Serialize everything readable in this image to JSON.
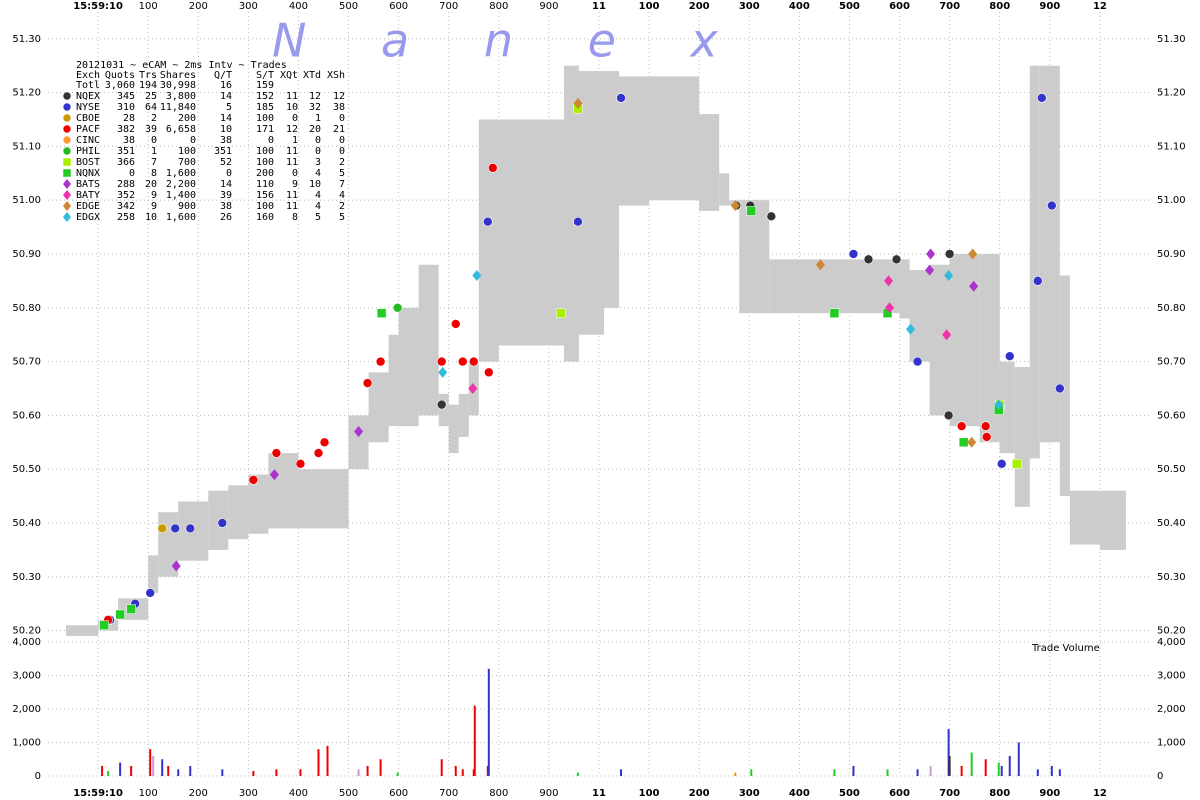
{
  "chart_data": {
    "type": "scatter",
    "watermark": "N a n e x",
    "volume_label": "Trade Volume",
    "grid": true,
    "xlim": [
      -100,
      2100
    ],
    "xticks": [
      {
        "value": 0,
        "label": "15:59:10"
      },
      100,
      200,
      300,
      400,
      500,
      600,
      700,
      800,
      900,
      {
        "value": 1000,
        "label": "11"
      },
      {
        "value": 1100,
        "label": "100"
      },
      {
        "value": 1200,
        "label": "200"
      },
      {
        "value": 1300,
        "label": "300"
      },
      {
        "value": 1400,
        "label": "400"
      },
      {
        "value": 1500,
        "label": "500"
      },
      {
        "value": 1600,
        "label": "600"
      },
      {
        "value": 1700,
        "label": "700"
      },
      {
        "value": 1800,
        "label": "800"
      },
      {
        "value": 1900,
        "label": "900"
      },
      {
        "value": 2000,
        "label": "12"
      }
    ],
    "ylim": [
      50.19,
      51.32
    ],
    "yticks": [
      {
        "value": 50.2,
        "label": "50.20"
      },
      {
        "value": 50.3,
        "label": "50.30"
      },
      {
        "value": 50.4,
        "label": "50.40"
      },
      {
        "value": 50.5,
        "label": "50.50"
      },
      {
        "value": 50.6,
        "label": "50.60"
      },
      {
        "value": 50.7,
        "label": "50.70"
      },
      {
        "value": 50.8,
        "label": "50.80"
      },
      {
        "value": 50.9,
        "label": "50.90"
      },
      {
        "value": 51.0,
        "label": "51.00"
      },
      {
        "value": 51.1,
        "label": "51.10"
      },
      {
        "value": 51.2,
        "label": "51.20"
      },
      {
        "value": 51.3,
        "label": "51.30"
      }
    ],
    "vol_ylim": [
      0,
      4000
    ],
    "vol_yticks": [
      0,
      {
        "value": 1000,
        "label": "1,000"
      },
      {
        "value": 2000,
        "label": "2,000"
      },
      {
        "value": 3000,
        "label": "3,000"
      },
      {
        "value": 4000,
        "label": "4,000"
      }
    ],
    "band": {
      "color": "#cccccc",
      "x": [
        -64,
        0,
        40,
        100,
        120,
        160,
        220,
        260,
        300,
        340,
        400,
        500,
        540,
        580,
        600,
        640,
        680,
        700,
        720,
        740,
        760,
        800,
        900,
        930,
        960,
        1010,
        1040,
        1100,
        1200,
        1240,
        1260,
        1280,
        1340,
        1600,
        1620,
        1660,
        1700,
        1760,
        1800,
        1830,
        1860,
        1880,
        1920,
        1940,
        2000,
        2050
      ],
      "low": [
        50.19,
        50.2,
        50.22,
        50.27,
        50.3,
        50.33,
        50.35,
        50.37,
        50.38,
        50.39,
        50.39,
        50.5,
        50.55,
        50.58,
        50.58,
        50.6,
        50.58,
        50.53,
        50.56,
        50.6,
        50.7,
        50.73,
        50.73,
        50.7,
        50.75,
        50.8,
        50.99,
        51.0,
        50.98,
        50.99,
        50.99,
        50.79,
        50.79,
        50.78,
        50.7,
        50.6,
        50.58,
        50.55,
        50.53,
        50.43,
        50.52,
        50.55,
        50.45,
        50.36,
        50.35,
        50.35
      ],
      "high": [
        50.21,
        50.22,
        50.26,
        50.34,
        50.42,
        50.44,
        50.46,
        50.47,
        50.49,
        50.53,
        50.5,
        50.6,
        50.68,
        50.75,
        50.8,
        50.88,
        50.64,
        50.62,
        50.64,
        50.7,
        51.15,
        51.15,
        51.15,
        51.25,
        51.24,
        51.24,
        51.23,
        51.23,
        51.16,
        51.05,
        51.0,
        51.0,
        50.89,
        50.89,
        50.87,
        50.88,
        50.9,
        50.9,
        50.7,
        50.69,
        51.25,
        51.25,
        50.86,
        50.46,
        50.46,
        50.46
      ]
    },
    "series": [
      {
        "name": "NQEX",
        "color": "#333333",
        "marker": "circle",
        "x": [
          686,
          1274,
          1302,
          1344,
          1538,
          1594,
          1698,
          1700
        ],
        "values": [
          50.62,
          50.99,
          50.99,
          50.97,
          50.89,
          50.89,
          50.6,
          50.9
        ]
      },
      {
        "name": "NYSE",
        "color": "#3333cc",
        "marker": "circle",
        "x": [
          24,
          44,
          74,
          104,
          154,
          184,
          248,
          564,
          778,
          958,
          1044,
          1508,
          1636,
          1804,
          1820,
          1876,
          1884,
          1904,
          1920
        ],
        "values": [
          50.22,
          50.23,
          50.25,
          50.27,
          50.39,
          50.39,
          50.4,
          50.7,
          50.96,
          50.96,
          51.19,
          50.9,
          50.7,
          50.51,
          50.71,
          50.85,
          51.19,
          50.99,
          50.65
        ]
      },
      {
        "name": "CBOE",
        "color": "#cc9900",
        "marker": "circle",
        "x": [
          128
        ],
        "values": [
          50.39
        ]
      },
      {
        "name": "PACF",
        "color": "#ee0000",
        "marker": "circle",
        "x": [
          20,
          310,
          356,
          404,
          440,
          452,
          538,
          564,
          686,
          714,
          728,
          750,
          780,
          788,
          1724,
          1772,
          1774
        ],
        "values": [
          50.22,
          50.48,
          50.53,
          50.51,
          50.53,
          50.55,
          50.66,
          50.7,
          50.7,
          50.77,
          50.7,
          50.7,
          50.68,
          51.06,
          50.58,
          50.58,
          50.56
        ]
      },
      {
        "name": "CINC",
        "color": "#ff9933",
        "marker": "circle",
        "x": [],
        "values": []
      },
      {
        "name": "PHIL",
        "color": "#22bb22",
        "marker": "circle",
        "x": [
          598
        ],
        "values": [
          50.8
        ]
      },
      {
        "name": "BOST",
        "color": "#aaee00",
        "marker": "square",
        "x": [
          924,
          958,
          1800,
          1834
        ],
        "values": [
          50.79,
          51.17,
          50.62,
          50.51
        ]
      },
      {
        "name": "NQNX",
        "color": "#22cc22",
        "marker": "square",
        "x": [
          12,
          44,
          66,
          566,
          1304,
          1470,
          1576,
          1728,
          1798
        ],
        "values": [
          50.21,
          50.23,
          50.24,
          50.79,
          50.98,
          50.79,
          50.79,
          50.55,
          50.61
        ]
      },
      {
        "name": "BATS",
        "color": "#aa33cc",
        "marker": "diamond",
        "x": [
          156,
          352,
          520,
          1660,
          1662,
          1748
        ],
        "values": [
          50.32,
          50.49,
          50.57,
          50.87,
          50.9,
          50.84
        ]
      },
      {
        "name": "BATY",
        "color": "#ee33aa",
        "marker": "diamond",
        "x": [
          748,
          1578,
          1580,
          1694
        ],
        "values": [
          50.65,
          50.85,
          50.8,
          50.75
        ]
      },
      {
        "name": "EDGE",
        "color": "#cc8833",
        "marker": "diamond",
        "x": [
          958,
          1272,
          1442,
          1744,
          1746
        ],
        "values": [
          51.18,
          50.99,
          50.88,
          50.55,
          50.9
        ]
      },
      {
        "name": "EDGX",
        "color": "#33bbdd",
        "marker": "diamond",
        "x": [
          688,
          756,
          1622,
          1698,
          1798
        ],
        "values": [
          50.68,
          50.86,
          50.76,
          50.86,
          50.62
        ]
      }
    ],
    "volume": {
      "x": [
        8,
        20,
        44,
        66,
        104,
        110,
        128,
        140,
        160,
        184,
        248,
        310,
        356,
        404,
        440,
        458,
        520,
        538,
        564,
        598,
        686,
        714,
        728,
        750,
        752,
        778,
        780,
        958,
        1044,
        1272,
        1304,
        1470,
        1508,
        1576,
        1636,
        1662,
        1698,
        1700,
        1724,
        1744,
        1772,
        1798,
        1804,
        1820,
        1838,
        1876,
        1904,
        1920
      ],
      "values": [
        300,
        150,
        400,
        300,
        800,
        600,
        500,
        300,
        200,
        300,
        200,
        150,
        200,
        200,
        800,
        900,
        200,
        300,
        500,
        100,
        500,
        300,
        200,
        200,
        2100,
        300,
        3200,
        100,
        200,
        100,
        200,
        200,
        300,
        200,
        200,
        300,
        1400,
        600,
        300,
        700,
        500,
        400,
        300,
        600,
        1000,
        200,
        300,
        200
      ],
      "colors": [
        "#ee0000",
        "#22cc22",
        "#3333cc",
        "#ee0000",
        "#ee0000",
        "#cc99cc",
        "#3333cc",
        "#ee0000",
        "#3333cc",
        "#3333cc",
        "#3333cc",
        "#ee0000",
        "#ee0000",
        "#ee0000",
        "#ee0000",
        "#ee0000",
        "#cc99cc",
        "#ee0000",
        "#ee0000",
        "#22cc22",
        "#ee0000",
        "#ee0000",
        "#ee0000",
        "#ee0000",
        "#ee0000",
        "#ee0000",
        "#3333cc",
        "#22cc22",
        "#3333cc",
        "#ee9900",
        "#22cc22",
        "#22cc22",
        "#3333cc",
        "#22cc22",
        "#3333cc",
        "#cc99cc",
        "#3333cc",
        "#333333",
        "#ee0000",
        "#22cc22",
        "#ee0000",
        "#22cc22",
        "#3333cc",
        "#3333cc",
        "#3333cc",
        "#3333cc",
        "#3333cc",
        "#3333cc"
      ]
    },
    "stats": {
      "title": "20121031 ~ eCAM ~ 2ms Intv ~ Trades",
      "columns": [
        "Exch",
        "Quots",
        "Trs",
        "Shares",
        "Q/T",
        "S/T",
        "XQt",
        "XTd",
        "XSh"
      ],
      "total": {
        "label": "Totl",
        "cells": [
          "3,060",
          "194",
          "30,998",
          "16",
          "159"
        ]
      },
      "rows": [
        [
          "345",
          "25",
          "3,800",
          "14",
          "152",
          "11",
          "12",
          "12"
        ],
        [
          "310",
          "64",
          "11,840",
          "5",
          "185",
          "10",
          "32",
          "38"
        ],
        [
          "28",
          "2",
          "200",
          "14",
          "100",
          "0",
          "1",
          "0"
        ],
        [
          "382",
          "39",
          "6,658",
          "10",
          "171",
          "12",
          "20",
          "21"
        ],
        [
          "38",
          "0",
          "0",
          "38",
          "0",
          "1",
          "0",
          "0"
        ],
        [
          "351",
          "1",
          "100",
          "351",
          "100",
          "11",
          "0",
          "0"
        ],
        [
          "366",
          "7",
          "700",
          "52",
          "100",
          "11",
          "3",
          "2"
        ],
        [
          "0",
          "8",
          "1,600",
          "0",
          "200",
          "0",
          "4",
          "5"
        ],
        [
          "288",
          "20",
          "2,200",
          "14",
          "110",
          "9",
          "10",
          "7"
        ],
        [
          "352",
          "9",
          "1,400",
          "39",
          "156",
          "11",
          "4",
          "4"
        ],
        [
          "342",
          "9",
          "900",
          "38",
          "100",
          "11",
          "4",
          "2"
        ],
        [
          "258",
          "10",
          "1,600",
          "26",
          "160",
          "8",
          "5",
          "5"
        ]
      ]
    }
  }
}
